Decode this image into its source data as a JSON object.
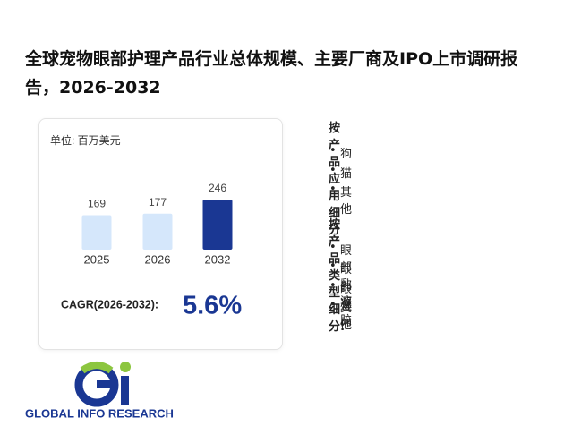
{
  "header": {
    "title": "全球宠物眼部护理产品行业总体规模、主要厂商及IPO上市调研报告，2026-2032"
  },
  "chart_data": {
    "type": "bar",
    "unit": "单位: 百万美元",
    "categories": [
      "2025",
      "2026",
      "2032"
    ],
    "values": [
      169,
      177,
      246
    ],
    "colors": [
      "#d5e7fb",
      "#d5e7fb",
      "#1a3793"
    ]
  },
  "cagr": {
    "label": "CAGR(2026-2032):",
    "value": "5.6%"
  },
  "segments": [
    {
      "heading": "按产品应用细分",
      "items": [
        "狗",
        "猫",
        "其他"
      ]
    },
    {
      "heading": "按产品类型细分:",
      "items": [
        "眼部乳液",
        "眼部凝胶",
        "眼湿巾",
        "其他"
      ]
    }
  ],
  "logo": {
    "text": "GLOBAL INFO RESEARCH"
  }
}
